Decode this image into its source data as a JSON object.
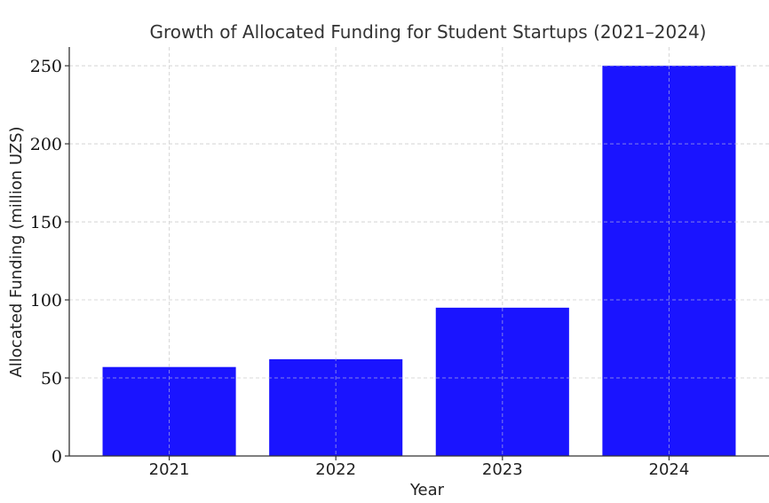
{
  "chart_data": {
    "type": "bar",
    "title": "Growth of Allocated Funding for Student Startups (2021–2024)",
    "xlabel": "Year",
    "ylabel": "Allocated Funding (million UZS)",
    "categories": [
      "2021",
      "2022",
      "2023",
      "2024"
    ],
    "values": [
      57,
      62,
      95,
      250
    ],
    "ylim": [
      0,
      262
    ],
    "yticks": [
      0,
      50,
      100,
      150,
      200,
      250
    ],
    "grid": true,
    "bar_color": "#1a14ff",
    "grid_color": "#d8d8d8"
  }
}
